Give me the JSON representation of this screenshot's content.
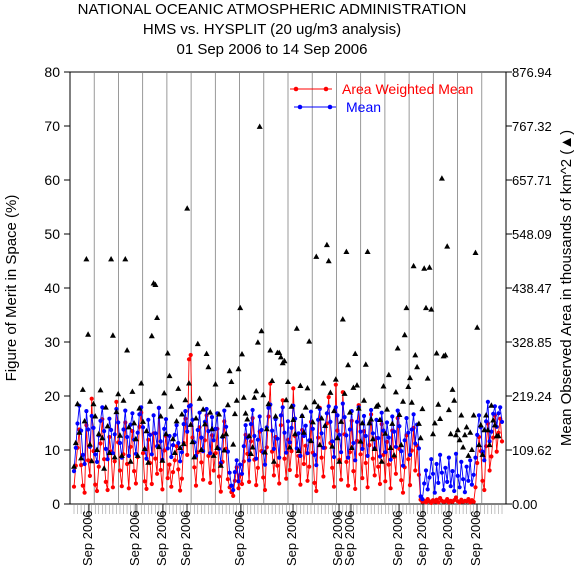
{
  "chart_data": {
    "type": "line",
    "title": "NATIONAL OCEANIC ATMOSPHERIC ADMINISTRATION",
    "subtitle": "HMS vs. HYSPLIT (20 ug/m3 analysis)",
    "date_range": "01 Sep 2006 to 14 Sep 2006",
    "ylabel": "Figure of Merit in Space (%)",
    "y2label": "Mean Observed Area in thousands of km^2 (▲)",
    "ylim": [
      0,
      80
    ],
    "y2lim": [
      0,
      876.94
    ],
    "y_ticks": [
      "0",
      "10",
      "20",
      "30",
      "40",
      "50",
      "60",
      "70",
      "80"
    ],
    "y2_ticks": [
      "0.00",
      "109.62",
      "219.24",
      "328.85",
      "438.47",
      "548.09",
      "657.71",
      "767.32",
      "876.94"
    ],
    "x_tick_labels": [
      "Sep 2006",
      "Sep 2006",
      "Sep 2006",
      "Sep 2006",
      "Sep 2006",
      "Sep 2006",
      "Sep 2006",
      "Sep 2006",
      "Sep 2006",
      "Sep 2006",
      "Sep 2006",
      "Sep 2006"
    ],
    "grid": false,
    "legend_position": "top-right",
    "series": [
      {
        "name": "Area Weighted Mean",
        "color": "#ff0000",
        "marker": "circle",
        "values": [
          3.2,
          7.1,
          10.4,
          13.8,
          7.2,
          3.4,
          2.1,
          14.6,
          8.1,
          5.2,
          19.5,
          9.8,
          3.6,
          2.4,
          6.9,
          11.2,
          15.7,
          8.3,
          4.1,
          2.6,
          12.4,
          9.7,
          3.1,
          7.9,
          18.9,
          11.4,
          6.2,
          3.3,
          9.2,
          15.1,
          7.4,
          2.9,
          10.6,
          13.5,
          6.1,
          3.8,
          8.7,
          14.3,
          16.9,
          9.4,
          4.2,
          2.8,
          11.9,
          7.6,
          3.7,
          13.1,
          8.4,
          5.6,
          17.8,
          6.3,
          2.7,
          9.9,
          12.6,
          4.8,
          7.3,
          3.2,
          5.9,
          8.1,
          10.7,
          6.4,
          2.5,
          4.7,
          11.3,
          15.8,
          9.1,
          26.8,
          27.6,
          12.3,
          6.8,
          3.4,
          9.6,
          14.2,
          7.7,
          4.5,
          11.8,
          16.4,
          8.9,
          3.9,
          12.7,
          6.2,
          9.4,
          13.9,
          5.1,
          2.3,
          7.8,
          15.3,
          10.2,
          4.6,
          3.1,
          2.2,
          1.5,
          4.3,
          6.8,
          2.9,
          5.4,
          3.7,
          7.9,
          12.8,
          9.3,
          4.1,
          11.6,
          15.9,
          8.2,
          3.5,
          6.7,
          13.4,
          9.8,
          4.9,
          2.6,
          10.5,
          16.2,
          22.3,
          9.7,
          5.3,
          12.4,
          7.1,
          3.8,
          14.6,
          19.2,
          8.4,
          4.7,
          11.9,
          6.3,
          9.8,
          21.4,
          12.6,
          5.2,
          8.9,
          3.6,
          13.7,
          7.4,
          10.8,
          4.3,
          6.9,
          15.2,
          9.5,
          3.9,
          2.4,
          12.3,
          17.8,
          8.6,
          5.1,
          10.4,
          14.9,
          19.8,
          11.3,
          6.7,
          3.2,
          22.1,
          13.6,
          8.2,
          4.5,
          20.7,
          12.9,
          7.8,
          3.4,
          9.6,
          15.4,
          6.1,
          2.8,
          11.7,
          18.3,
          9.2,
          4.8,
          13.5,
          7.6,
          3.1,
          10.9,
          16.6,
          8.4,
          5.3,
          12.2,
          6.9,
          3.7,
          14.8,
          9.1,
          4.2,
          11.5,
          7.3,
          2.9,
          13.6,
          8.7,
          5.6,
          15.9,
          10.2,
          4.4,
          2.1,
          6.8,
          12.7,
          8.3,
          3.5,
          9.9,
          14.1,
          6.2,
          10.8,
          5.4,
          0.8,
          0.4,
          0.6,
          0.3,
          0.9,
          0.5,
          0.2,
          0.7,
          0.4,
          0.8,
          0.3,
          1.1,
          0.6,
          0.4,
          0.5,
          0.9,
          0.3,
          0.6,
          0.4,
          0.7,
          1.2,
          0.5,
          0.3,
          0.8,
          0.4,
          0.6,
          0.5,
          0.9,
          0.3,
          0.7,
          0.4,
          3.1,
          7.6,
          12.4,
          9.8,
          4.3,
          2.6,
          10.7,
          14.9,
          6.2,
          8.8,
          12.3,
          16.4,
          9.7,
          13.2,
          15.8,
          11.6
        ]
      },
      {
        "name": "Mean",
        "color": "#0000ff",
        "marker": "circle",
        "values": [
          6.1,
          10.4,
          14.9,
          18.2,
          13.6,
          9.1,
          7.4,
          17.2,
          13.8,
          10.6,
          16.3,
          14.1,
          9.2,
          7.8,
          12.7,
          15.4,
          17.9,
          13.5,
          10.2,
          8.3,
          15.8,
          13.7,
          9.4,
          12.9,
          17.6,
          15.1,
          11.3,
          8.6,
          13.8,
          17.3,
          12.4,
          8.9,
          14.7,
          16.8,
          11.9,
          9.3,
          13.2,
          16.6,
          17.9,
          14.2,
          10.1,
          8.4,
          15.6,
          12.8,
          9.2,
          16.4,
          13.1,
          10.7,
          17.8,
          11.6,
          8.2,
          13.9,
          15.7,
          10.3,
          12.6,
          8.7,
          10.9,
          12.8,
          14.6,
          11.3,
          7.9,
          9.6,
          14.8,
          17.2,
          13.4,
          18.1,
          18.3,
          15.6,
          11.4,
          8.9,
          13.7,
          16.9,
          12.3,
          9.8,
          15.2,
          17.6,
          13.5,
          9.4,
          16.1,
          11.8,
          13.9,
          16.8,
          10.2,
          7.6,
          12.4,
          17.3,
          14.3,
          9.7,
          5.8,
          3.4,
          2.6,
          5.9,
          8.1,
          4.2,
          7.3,
          5.6,
          10.7,
          14.6,
          12.3,
          8.1,
          14.8,
          17.4,
          12.6,
          8.4,
          11.9,
          16.2,
          13.7,
          9.6,
          7.3,
          14.2,
          17.8,
          18.4,
          13.6,
          10.2,
          15.7,
          12.1,
          8.6,
          16.4,
          17.9,
          13.2,
          9.5,
          15.3,
          11.4,
          14.1,
          18.2,
          15.8,
          10.3,
          13.1,
          8.9,
          16.3,
          12.6,
          14.5,
          9.4,
          11.8,
          17.1,
          13.9,
          9.1,
          7.2,
          15.6,
          17.6,
          13.1,
          10.4,
          14.4,
          16.8,
          18.1,
          15.2,
          11.6,
          8.7,
          17.9,
          16.4,
          12.8,
          9.6,
          18.6,
          16.1,
          12.7,
          8.6,
          13.8,
          17.2,
          11.3,
          8.1,
          15.2,
          17.9,
          13.4,
          10.2,
          16.3,
          12.6,
          8.9,
          14.9,
          17.4,
          13.1,
          10.3,
          15.6,
          12.2,
          8.8,
          16.9,
          13.6,
          9.6,
          15.1,
          12.3,
          8.2,
          16.2,
          13.4,
          10.6,
          17.3,
          14.4,
          9.8,
          7.1,
          11.8,
          15.9,
          13.2,
          9.1,
          13.8,
          16.6,
          11.2,
          14.7,
          10.3,
          1.4,
          0.9,
          3.8,
          6.2,
          2.7,
          4.9,
          8.3,
          5.6,
          2.1,
          7.4,
          3.9,
          9.1,
          5.8,
          2.6,
          6.7,
          4.1,
          8.6,
          3.3,
          6.1,
          2.4,
          9.3,
          5.2,
          3.1,
          7.8,
          4.6,
          2.2,
          6.9,
          4.3,
          8.1,
          3.6,
          5.4,
          8.6,
          12.8,
          16.4,
          14.2,
          9.7,
          8.1,
          15.3,
          18.9,
          11.6,
          13.4,
          16.7,
          18.1,
          14.3,
          16.8,
          17.9,
          15.2
        ]
      },
      {
        "name": "Mean Observed Area",
        "axis": "right",
        "color": "#000000",
        "marker": "triangle",
        "values": [
          76,
          124,
          203,
          145,
          93,
          232,
          168,
          497,
          344,
          121,
          87,
          203,
          178,
          110,
          142,
          231,
          134,
          72,
          196,
          158,
          104,
          497,
          342,
          95,
          187,
          223,
          139,
          98,
          210,
          497,
          312,
          156,
          86,
          228,
          164,
          132,
          98,
          194,
          245,
          167,
          112,
          148,
          84,
          208,
          341,
          448,
          445,
          378,
          116,
          178,
          88,
          225,
          142,
          306,
          260,
          198,
          132,
          104,
          168,
          234,
          114,
          182,
          122,
          211,
          600,
          245,
          161,
          126,
          95,
          174,
          325,
          214,
          110,
          192,
          162,
          305,
          278,
          186,
          152,
          98,
          243,
          114,
          182,
          78,
          138,
          109,
          142,
          201,
          270,
          248,
          121,
          183,
          210,
          274,
          398,
          304,
          216,
          184,
          172,
          138,
          102,
          115,
          216,
          229,
          328,
          766,
          351,
          221,
          105,
          152,
          203,
          312,
          250,
          86,
          178,
          307,
          307,
          298,
          286,
          290,
          211,
          248,
          115,
          198,
          171,
          142,
          356,
          108,
          240,
          179,
          145,
          196,
          235,
          330,
          128,
          166,
          207,
          502,
          198,
          120,
          174,
          245,
          159,
          526,
          493,
          226,
          117,
          189,
          253,
          134,
          86,
          167,
          375,
          224,
          512,
          282,
          186,
          114,
          236,
          305,
          241,
          194,
          127,
          164,
          210,
          283,
          512,
          164,
          172,
          132,
          112,
          198,
          201,
          171,
          86,
          239,
          143,
          192,
          262,
          114,
          163,
          99,
          227,
          316,
          181,
          120,
          208,
          343,
          398,
          238,
          256,
          206,
          483,
          302,
          278,
          163,
          134,
          193,
          478,
          398,
          255,
          480,
          395,
          142,
          164,
          306,
          202,
          173,
          661,
          300,
          302,
          523,
          191,
          142,
          232,
          210,
          140,
          150,
          130,
          180,
          115,
          140,
          156,
          98,
          145,
          110,
          180,
          510,
          358,
          120,
          160,
          100,
          150,
          180,
          150,
          120,
          200,
          170,
          160,
          138,
          138
        ]
      }
    ]
  }
}
